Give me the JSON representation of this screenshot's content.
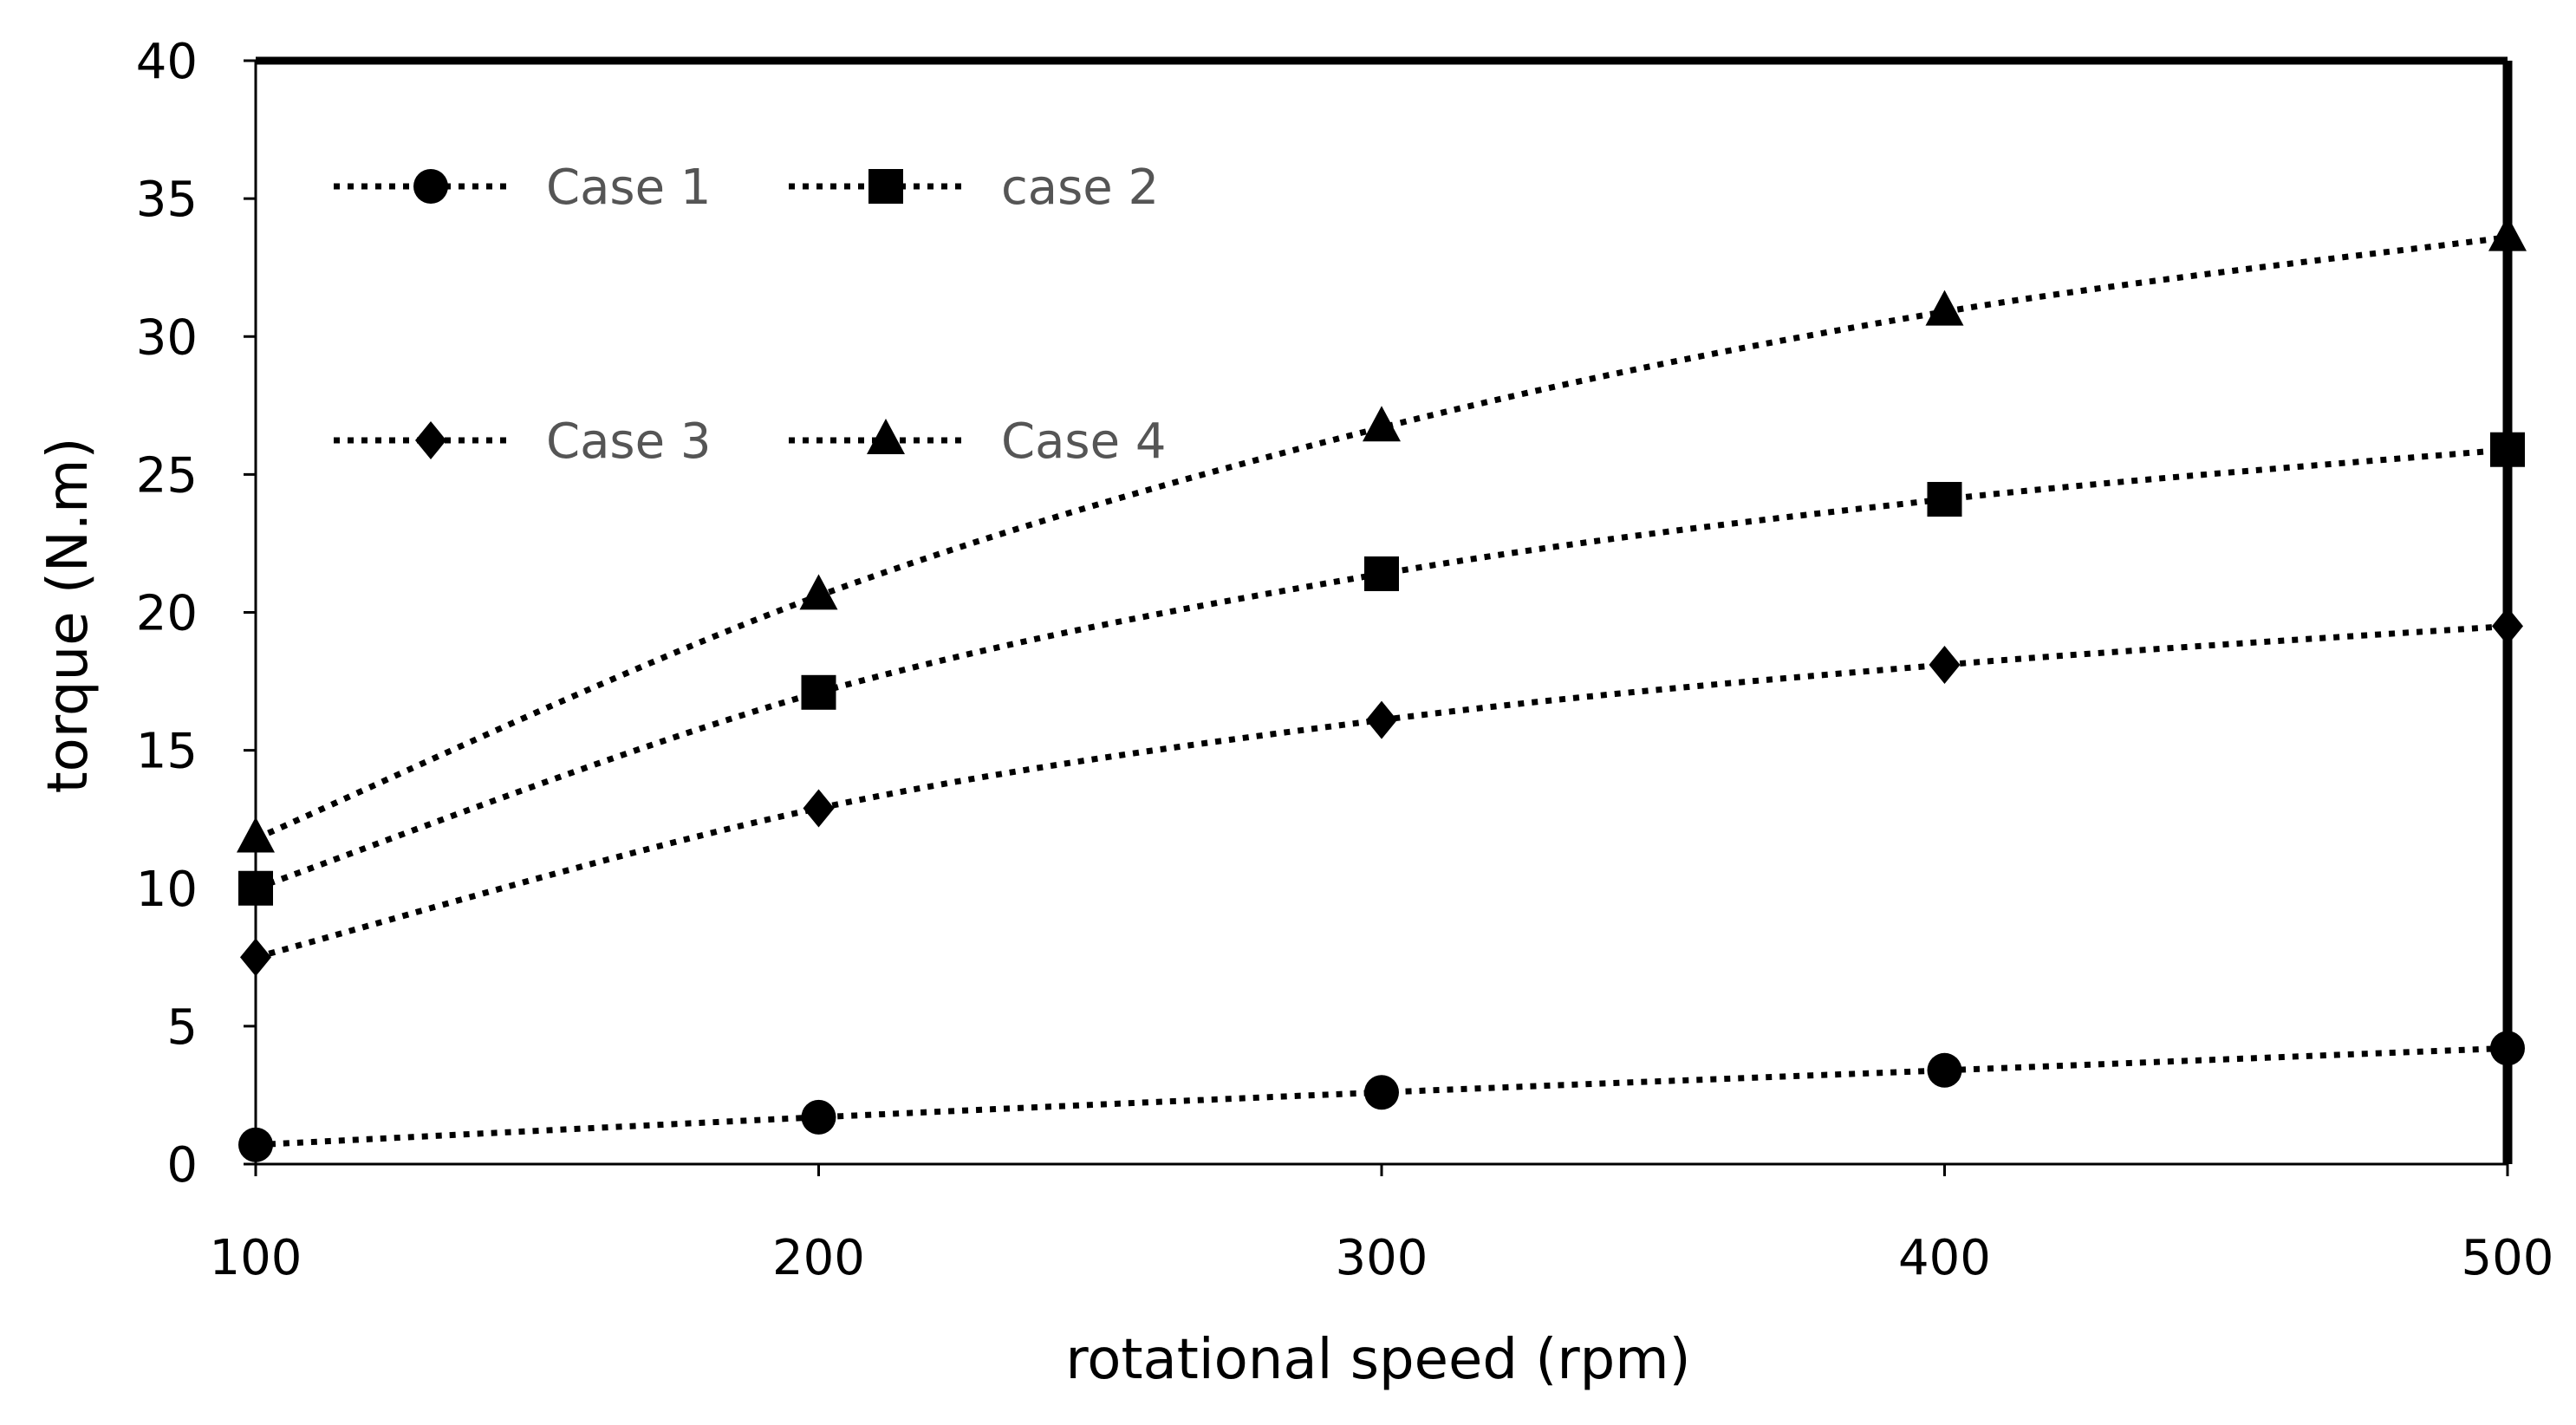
{
  "chart_data": {
    "type": "line",
    "title": "",
    "xlabel": "rotational speed (rpm)",
    "ylabel": "torque (N.m)",
    "x": [
      100,
      200,
      300,
      400,
      500
    ],
    "xlim": [
      100,
      500
    ],
    "ylim": [
      0,
      40
    ],
    "x_ticks": [
      "100",
      "200",
      "300",
      "400",
      "500"
    ],
    "y_ticks": [
      "0",
      "5",
      "10",
      "15",
      "20",
      "25",
      "30",
      "35",
      "40"
    ],
    "grid": false,
    "legend_position": "top-left",
    "series": [
      {
        "name": "Case 1",
        "marker": "circle",
        "values": [
          0.7,
          1.7,
          2.6,
          3.4,
          4.2
        ]
      },
      {
        "name": "case 2",
        "marker": "square",
        "values": [
          10.0,
          17.1,
          21.4,
          24.1,
          25.9
        ]
      },
      {
        "name": "Case 3",
        "marker": "diamond",
        "values": [
          7.5,
          12.9,
          16.1,
          18.1,
          19.5
        ]
      },
      {
        "name": "Case 4",
        "marker": "triangle",
        "values": [
          11.8,
          20.6,
          26.7,
          30.9,
          33.6
        ]
      }
    ],
    "colors": {
      "line": "#000000",
      "marker": "#000000",
      "legend_text": "#555555"
    }
  }
}
